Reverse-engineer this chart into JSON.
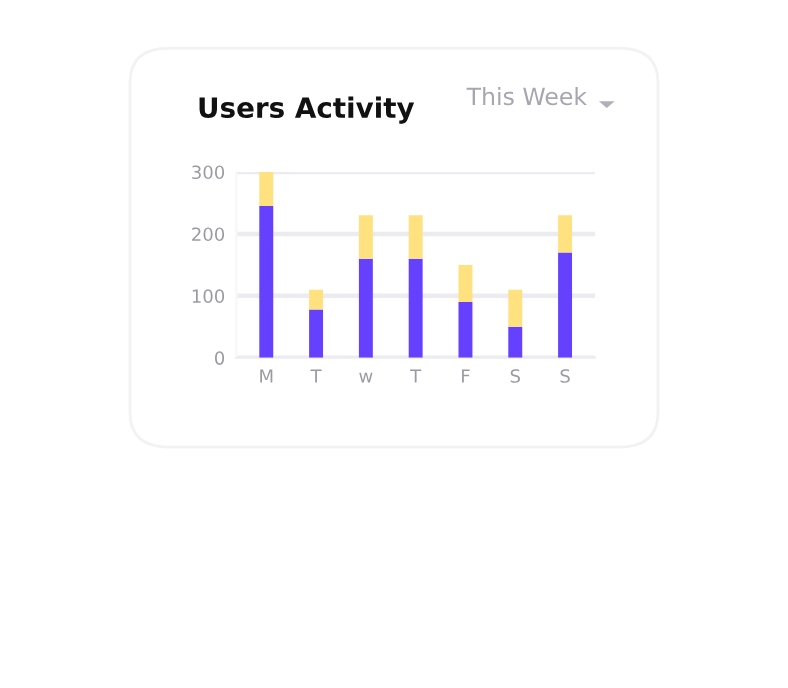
{
  "chart_data": {
    "type": "bar",
    "title": "Users Activity",
    "annotations": [
      "This Week"
    ],
    "categories": [
      "M",
      "T",
      "w",
      "T",
      "F",
      "S",
      "S"
    ],
    "stacked": true,
    "series": [
      {
        "color": "#6640ff",
        "values": [
          245,
          78,
          160,
          160,
          90,
          50,
          170
        ]
      },
      {
        "color": "#ffe17f",
        "values": [
          55,
          32,
          70,
          70,
          60,
          60,
          60
        ]
      }
    ],
    "ylim": [
      0,
      300
    ],
    "yticks": [
      0,
      100,
      200,
      300
    ],
    "grid": "y",
    "legend": false
  }
}
